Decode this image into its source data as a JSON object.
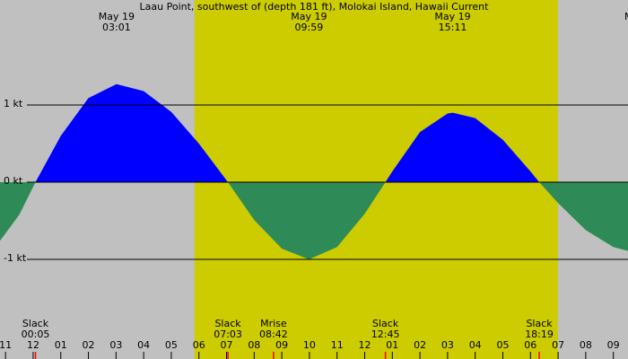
{
  "chart_data": {
    "type": "area",
    "title": "Laau Point, southwest of (depth 181 ft), Molokai Island, Hawaii Current",
    "xlim": [
      -1.2,
      21.53
    ],
    "ylim": [
      -2.29,
      2.36
    ],
    "xticks": [
      {
        "value": -1,
        "label": "11"
      },
      {
        "value": 0,
        "label": "12"
      },
      {
        "value": 1,
        "label": "01"
      },
      {
        "value": 2,
        "label": "02"
      },
      {
        "value": 3,
        "label": "03"
      },
      {
        "value": 4,
        "label": "04"
      },
      {
        "value": 5,
        "label": "05"
      },
      {
        "value": 6,
        "label": "06"
      },
      {
        "value": 7,
        "label": "07"
      },
      {
        "value": 8,
        "label": "08"
      },
      {
        "value": 9,
        "label": "09"
      },
      10,
      11,
      12,
      {
        "value": 13,
        "label": "01"
      },
      {
        "value": 14,
        "label": "02"
      },
      {
        "value": 15,
        "label": "03"
      },
      {
        "value": 16,
        "label": "04"
      },
      {
        "value": 17,
        "label": "05"
      },
      {
        "value": 18,
        "label": "06"
      },
      {
        "value": 19,
        "label": "07"
      },
      {
        "value": 20,
        "label": "08"
      },
      {
        "value": 21,
        "label": "09"
      }
    ],
    "yticks": [
      {
        "value": 1,
        "label": "1 kt"
      },
      {
        "value": 0,
        "label": "0 kt"
      },
      {
        "value": -1,
        "label": "-1 kt"
      }
    ],
    "daylight": [
      5.84,
      18.99
    ],
    "colors": {
      "background": "#c0c0c0",
      "daylight": "#cccc00",
      "flood": "#0000ff",
      "ebb": "#2e8b57"
    },
    "x": [
      -1.2,
      -0.5,
      0.083,
      1,
      2,
      3.017,
      4,
      5,
      6,
      7.05,
      8,
      9,
      9.983,
      11,
      12,
      12.75,
      13,
      14,
      15,
      15.183,
      16,
      17,
      18,
      18.317,
      19,
      20,
      21,
      21.53
    ],
    "values": [
      -0.76,
      -0.42,
      0,
      0.6,
      1.09,
      1.27,
      1.18,
      0.91,
      0.5,
      0,
      -0.49,
      -0.86,
      -1.0,
      -0.84,
      -0.41,
      0,
      0.14,
      0.65,
      0.89,
      0.9,
      0.83,
      0.55,
      0.14,
      0,
      -0.27,
      -0.62,
      -0.84,
      -0.89
    ],
    "extremes": [
      {
        "x": 3.017,
        "date": "May 19",
        "time": "03:01"
      },
      {
        "x": 9.983,
        "date": "May 19",
        "time": "09:59"
      },
      {
        "x": 15.183,
        "date": "May 19",
        "time": "15:11"
      },
      {
        "x": 21.4,
        "date": "M"
      }
    ],
    "events": [
      {
        "x": 0.083,
        "label": "Slack",
        "time": "00:05"
      },
      {
        "x": 7.05,
        "label": "Slack",
        "time": "07:03"
      },
      {
        "x": 8.7,
        "label": "Mrise",
        "time": "08:42"
      },
      {
        "x": 12.75,
        "label": "Slack",
        "time": "12:45"
      },
      {
        "x": 18.317,
        "label": "Slack",
        "time": "18:19"
      }
    ]
  }
}
